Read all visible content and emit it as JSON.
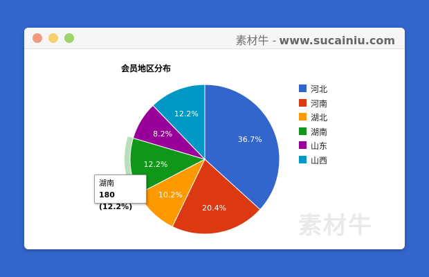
{
  "window": {
    "site_name": "素材牛",
    "separator": "-",
    "site_url": "www.sucainiu.com",
    "buttons": [
      "close",
      "minimize",
      "maximize"
    ],
    "button_colors": [
      "#ef9a80",
      "#f5d26f",
      "#9ed56a"
    ]
  },
  "chart_data": {
    "type": "pie",
    "title": "会员地区分布",
    "slices": [
      {
        "label": "河北",
        "percent": 36.7,
        "color": "#3366cc"
      },
      {
        "label": "河南",
        "percent": 20.4,
        "color": "#dc3912"
      },
      {
        "label": "湖北",
        "percent": 10.2,
        "color": "#ff9900"
      },
      {
        "label": "湖南",
        "percent": 12.2,
        "color": "#109618"
      },
      {
        "label": "山东",
        "percent": 8.2,
        "color": "#990099"
      },
      {
        "label": "山西",
        "percent": 12.2,
        "color": "#0099c6"
      }
    ],
    "slice_labels": [
      "36.7%",
      "20.4%",
      "10.2%",
      "12.2%",
      "8.2%",
      "12.2%"
    ],
    "legend_position": "right",
    "highlighted_slice": "湖南"
  },
  "tooltip": {
    "name": "湖南",
    "value_text": "180 (12.2%)"
  },
  "watermark": "素材牛"
}
